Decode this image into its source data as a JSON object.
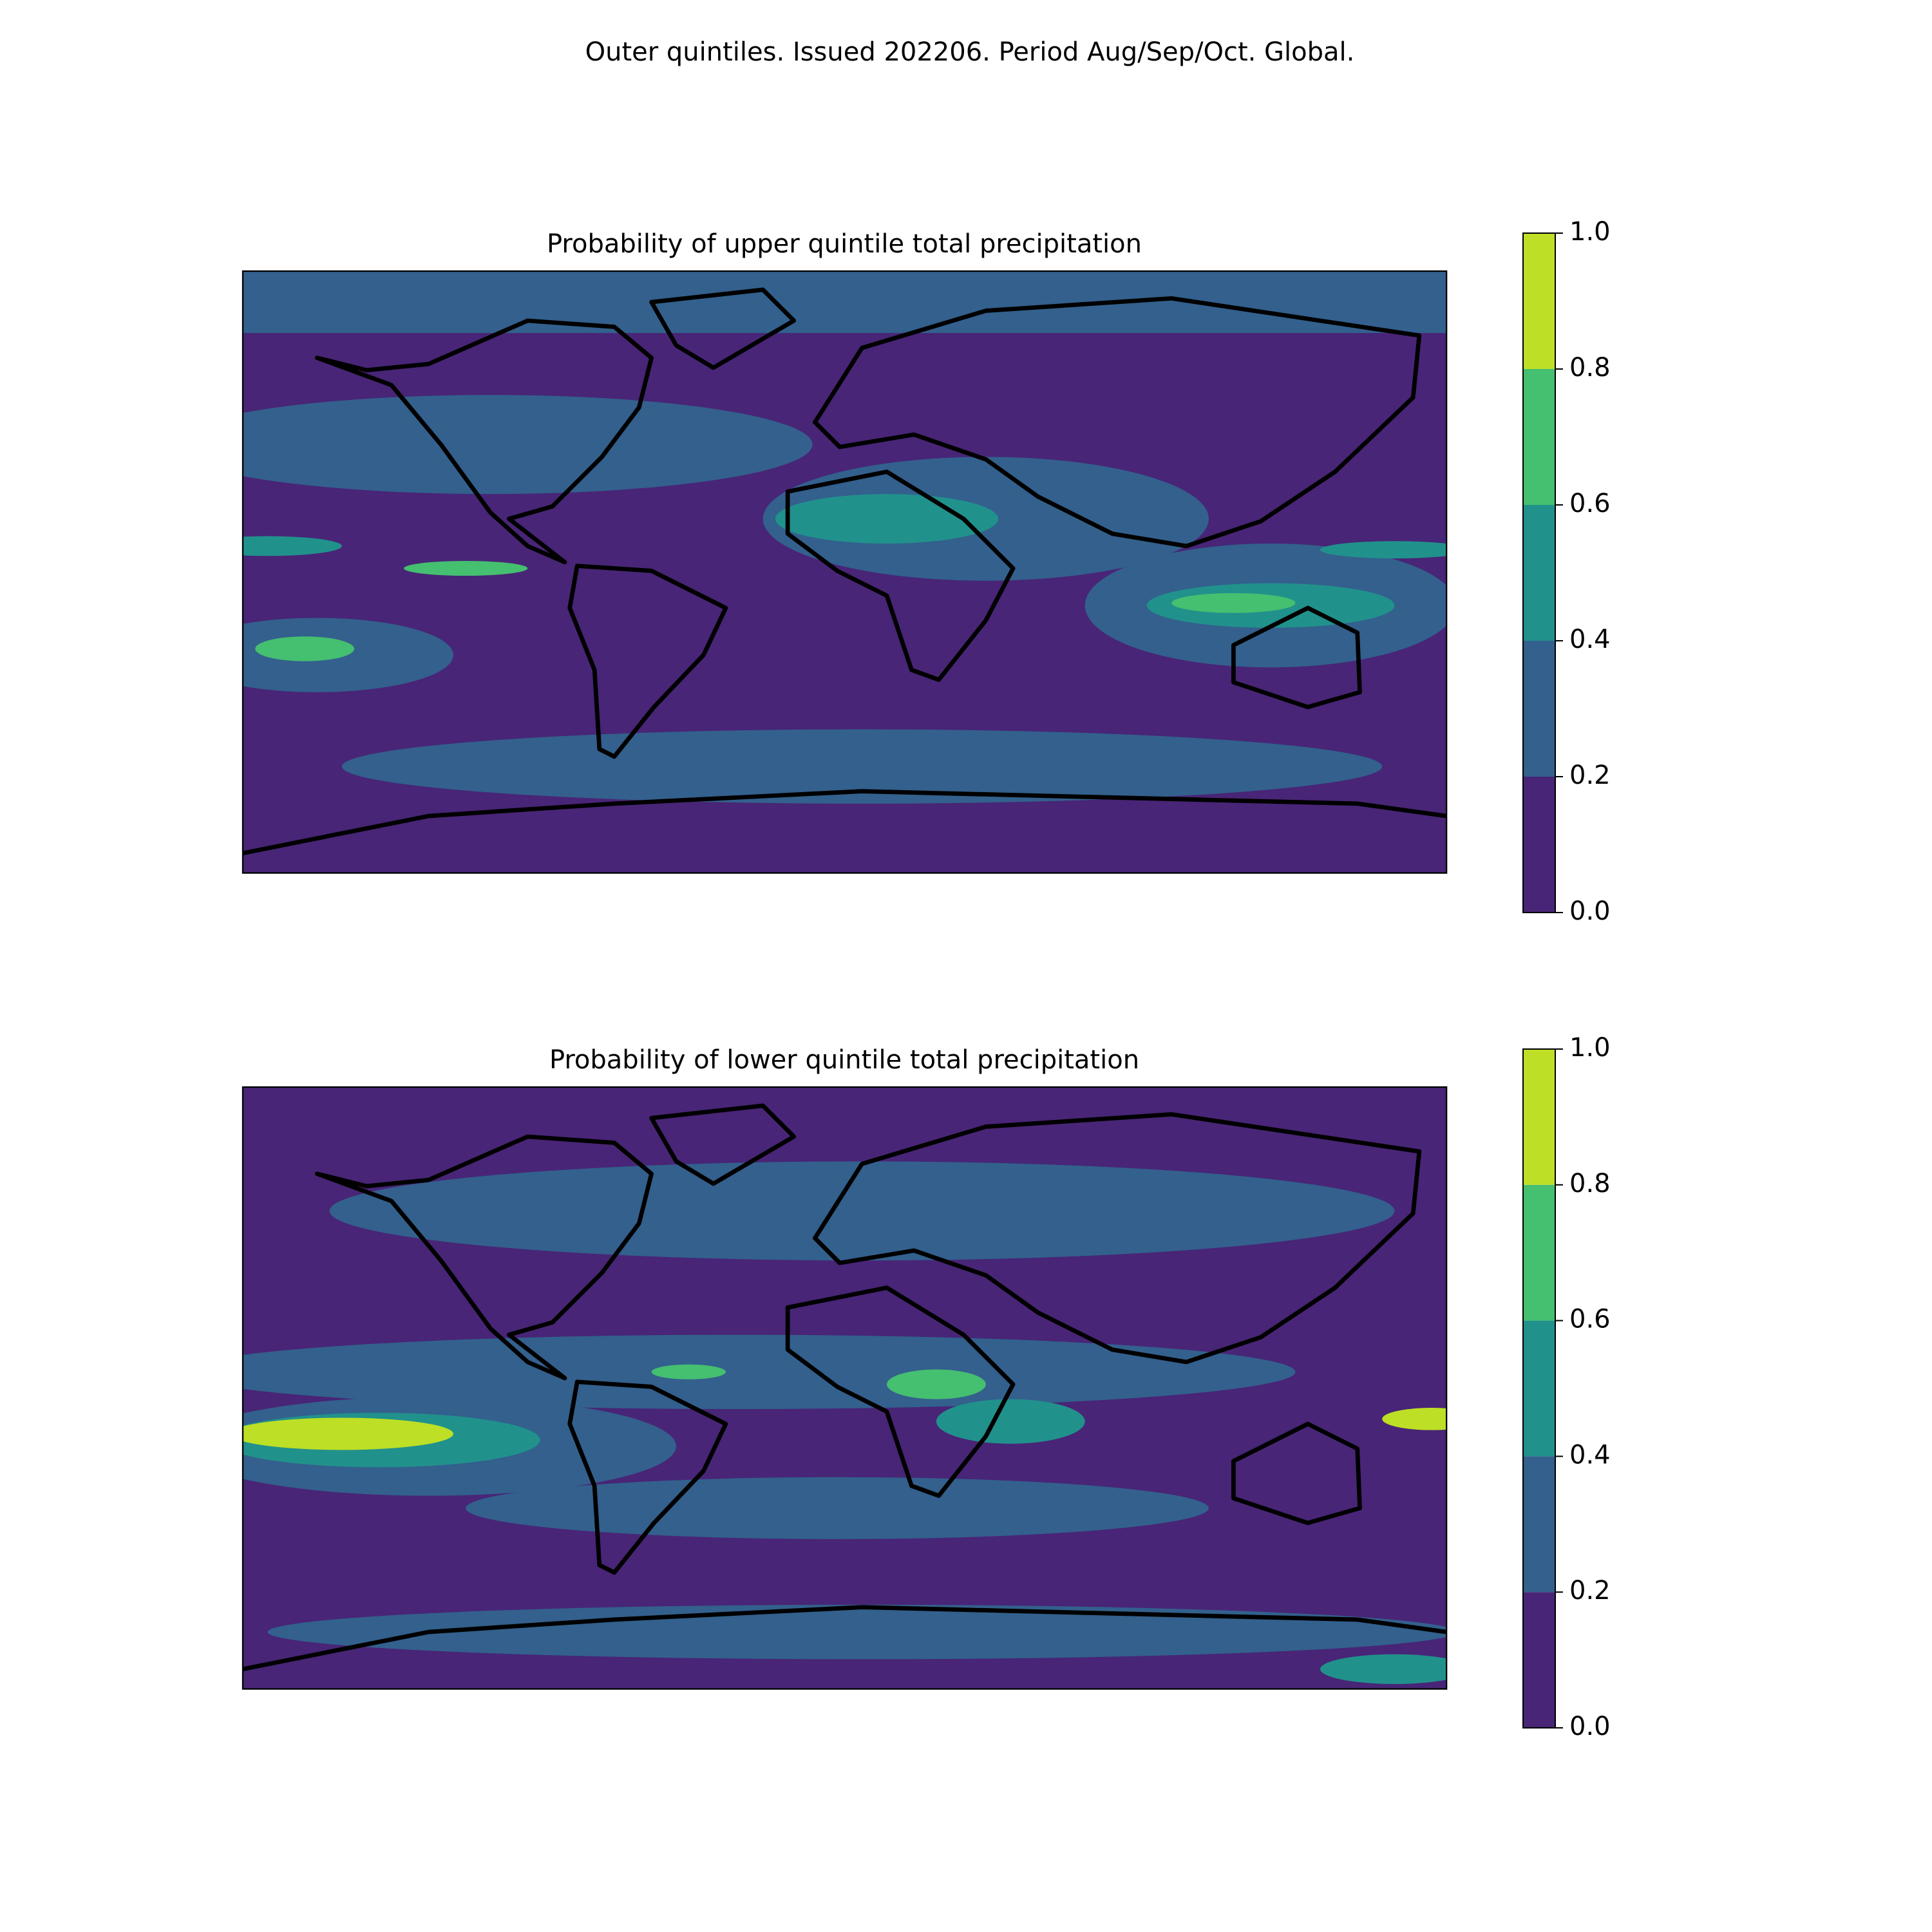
{
  "title": "Outer quintiles. Issued 202206. Period Aug/Sep/Oct. Global.",
  "chart_data": [
    {
      "type": "map",
      "title": "Probability of upper quintile total precipitation",
      "colors": [
        "#482576",
        "#33608d",
        "#21918c",
        "#45bf70",
        "#bddf26"
      ],
      "ylim": [
        0,
        1
      ],
      "yticks": [
        {
          "value": 0,
          "label": "0.0"
        },
        0.2,
        0.4,
        0.6,
        0.8,
        {
          "value": 1,
          "label": "1.0"
        }
      ]
    },
    {
      "type": "map",
      "title": "Probability of lower quintile total precipitation",
      "colors": [
        "#482576",
        "#33608d",
        "#21918c",
        "#45bf70",
        "#bddf26"
      ],
      "ylim": [
        0,
        1
      ],
      "yticks": [
        {
          "value": 0,
          "label": "0.0"
        },
        0.2,
        0.4,
        0.6,
        0.8,
        {
          "value": 1,
          "label": "1.0"
        }
      ]
    }
  ]
}
